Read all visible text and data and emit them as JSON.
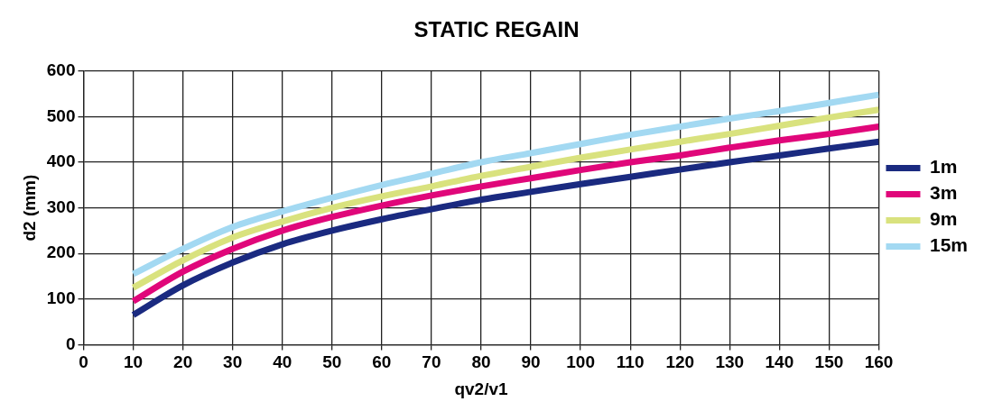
{
  "chart_data": {
    "type": "line",
    "title": "STATIC REGAIN",
    "xlabel": "qv2/v1",
    "ylabel": "d2 (mm)",
    "x": [
      10,
      20,
      30,
      40,
      50,
      60,
      70,
      80,
      90,
      100,
      110,
      120,
      130,
      140,
      150,
      160
    ],
    "series": [
      {
        "name": "1m",
        "color": "#1a2a80",
        "values": [
          65,
          130,
          180,
          220,
          250,
          275,
          297,
          318,
          335,
          352,
          368,
          384,
          400,
          415,
          430,
          445
        ]
      },
      {
        "name": "3m",
        "color": "#e0077a",
        "values": [
          95,
          160,
          210,
          250,
          280,
          305,
          327,
          347,
          365,
          383,
          400,
          415,
          432,
          448,
          462,
          478
        ]
      },
      {
        "name": "9m",
        "color": "#d9e27e",
        "values": [
          125,
          185,
          235,
          270,
          300,
          325,
          347,
          370,
          390,
          410,
          428,
          445,
          462,
          480,
          498,
          515
        ]
      },
      {
        "name": "15m",
        "color": "#a3d9f2",
        "values": [
          155,
          210,
          258,
          292,
          322,
          350,
          375,
          400,
          420,
          440,
          460,
          478,
          496,
          512,
          530,
          548
        ]
      }
    ],
    "xlim": [
      0,
      160
    ],
    "xticks": [
      0,
      10,
      20,
      30,
      40,
      50,
      60,
      70,
      80,
      90,
      100,
      110,
      120,
      130,
      140,
      150,
      160
    ],
    "ylim": [
      0,
      600
    ],
    "yticks": [
      0,
      100,
      200,
      300,
      400,
      500,
      600
    ],
    "grid": true,
    "legend": "right",
    "marker": "none",
    "line_style": "solid"
  }
}
